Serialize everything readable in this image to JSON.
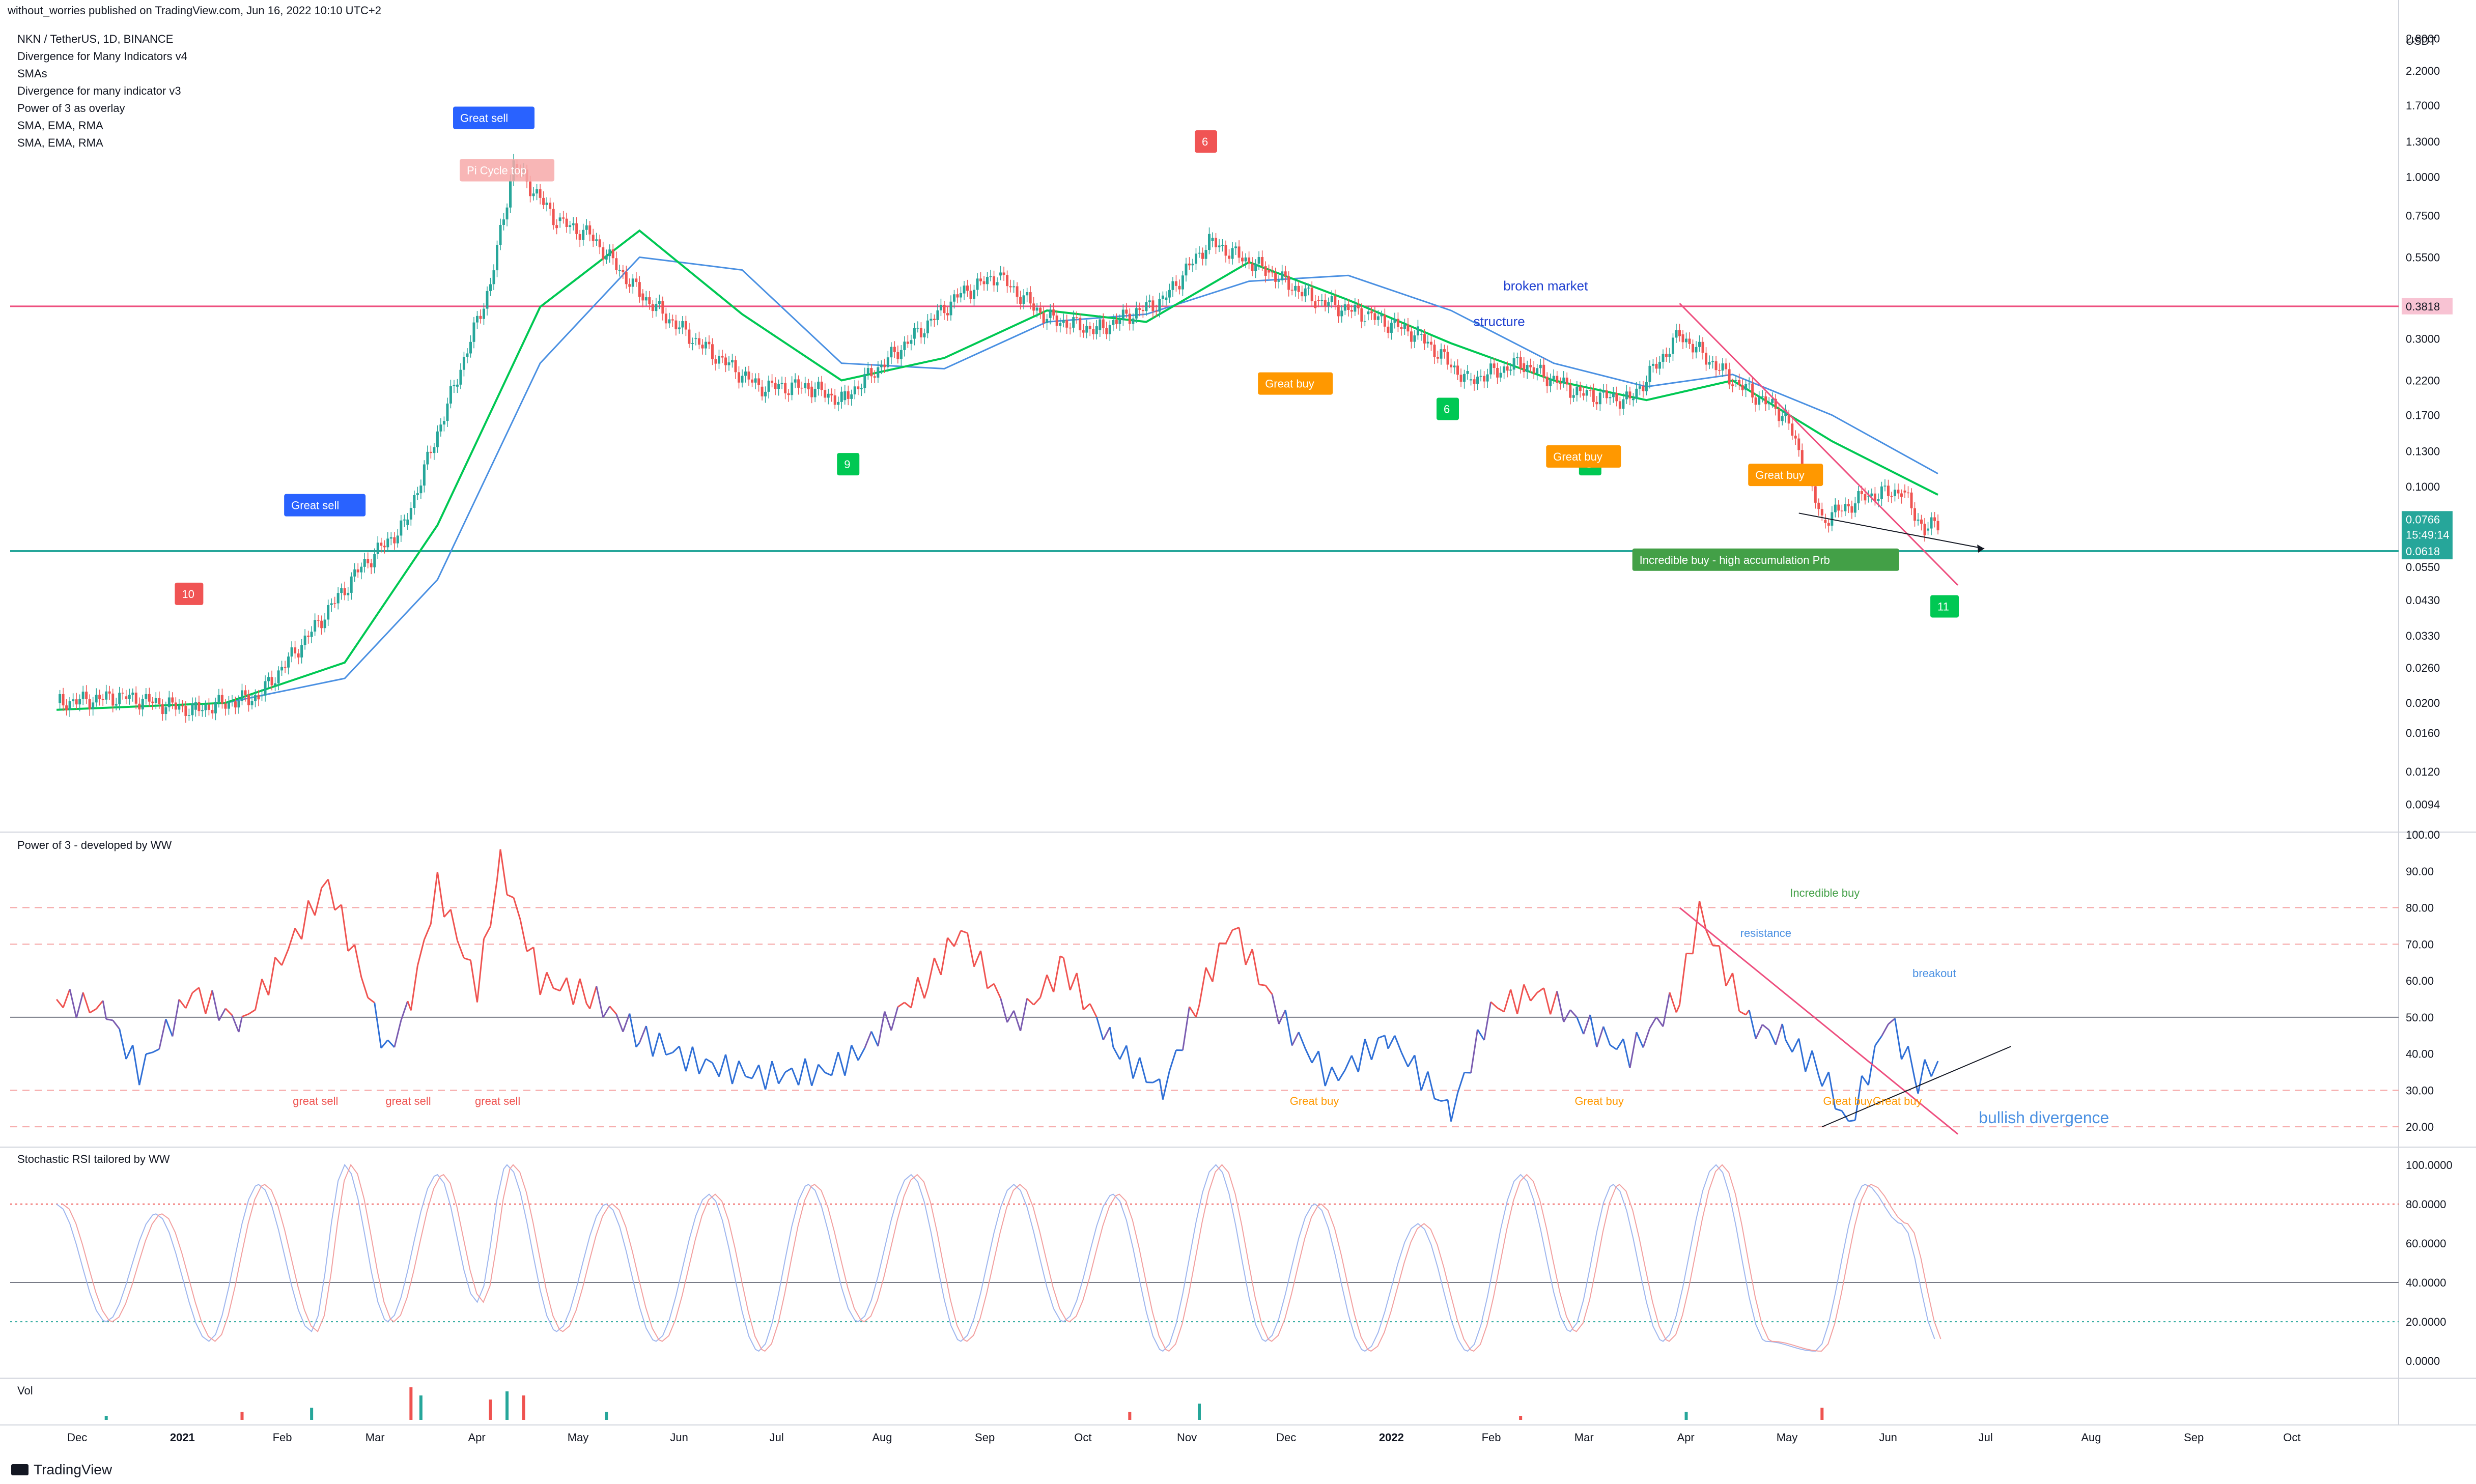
{
  "header": "without_worries published on TradingView.com, Jun 16, 2022 10:10 UTC+2",
  "legend": [
    "NKN / TetherUS, 1D, BINANCE",
    "Divergence for Many Indicators v4",
    "SMAs",
    "Divergence for many indicator v3",
    "Power of 3 as overlay",
    "SMA, EMA, RMA",
    "SMA, EMA, RMA"
  ],
  "footer": "TradingView",
  "colors": {
    "up": "#26a69a",
    "down": "#ef5350",
    "ma_green": "#00c853",
    "ma_blue": "#4a90e2",
    "pink": "#ee4f7f",
    "teal": "#26a69a",
    "orange": "#ff9800",
    "blue_label": "#2962ff"
  },
  "chart_data": [
    {
      "type": "line",
      "title": "NKN / TetherUS, 1D, BINANCE",
      "y_scale": "log",
      "ylabel": "USDT",
      "y_ticks": [
        "2.8000",
        "2.2000",
        "1.7000",
        "1.3000",
        "1.0000",
        "0.7500",
        "0.5500",
        "0.3818",
        "0.3000",
        "0.2200",
        "0.1700",
        "0.1300",
        "0.1000",
        "0.0766",
        "0.0550",
        "0.0430",
        "0.0330",
        "0.0260",
        "0.0200",
        "0.0160",
        "0.0120",
        "0.0094"
      ],
      "x_ticks": [
        "Dec",
        "2021",
        "Feb",
        "Mar",
        "Apr",
        "May",
        "Jun",
        "Jul",
        "Aug",
        "Sep",
        "Oct",
        "Nov",
        "Dec",
        "2022",
        "Feb",
        "Mar",
        "Apr",
        "May",
        "Jun",
        "Jul",
        "Aug",
        "Sep",
        "Oct"
      ],
      "series": [
        {
          "name": "price",
          "x": [
            "2020-11-25",
            "2020-12-15",
            "2021-01-05",
            "2021-01-25",
            "2021-02-10",
            "2021-02-25",
            "2021-03-10",
            "2021-03-25",
            "2021-04-05",
            "2021-04-12",
            "2021-04-25",
            "2021-05-05",
            "2021-05-20",
            "2021-06-05",
            "2021-06-25",
            "2021-07-10",
            "2021-07-20",
            "2021-08-10",
            "2021-08-25",
            "2021-09-05",
            "2021-09-20",
            "2021-10-05",
            "2021-10-25",
            "2021-11-08",
            "2021-11-25",
            "2021-12-10",
            "2021-12-25",
            "2022-01-10",
            "2022-01-25",
            "2022-02-10",
            "2022-02-28",
            "2022-03-15",
            "2022-03-30",
            "2022-04-15",
            "2022-05-01",
            "2022-05-12",
            "2022-05-25",
            "2022-06-05",
            "2022-06-12",
            "2022-06-16"
          ],
          "values": [
            0.02,
            0.021,
            0.019,
            0.021,
            0.034,
            0.055,
            0.075,
            0.21,
            0.45,
            1.1,
            0.72,
            0.65,
            0.42,
            0.3,
            0.21,
            0.21,
            0.19,
            0.3,
            0.42,
            0.48,
            0.35,
            0.32,
            0.4,
            0.62,
            0.5,
            0.4,
            0.36,
            0.31,
            0.22,
            0.25,
            0.2,
            0.19,
            0.31,
            0.22,
            0.17,
            0.078,
            0.093,
            0.097,
            0.072,
            0.0766
          ]
        },
        {
          "name": "SMA green",
          "x": [
            "2020-11-25",
            "2021-01-15",
            "2021-02-20",
            "2021-03-20",
            "2021-04-20",
            "2021-05-20",
            "2021-06-20",
            "2021-07-20",
            "2021-08-20",
            "2021-09-20",
            "2021-10-20",
            "2021-11-20",
            "2021-12-20",
            "2022-01-20",
            "2022-02-20",
            "2022-03-20",
            "2022-04-15",
            "2022-05-15",
            "2022-06-16"
          ],
          "values": [
            0.019,
            0.02,
            0.027,
            0.075,
            0.38,
            0.67,
            0.36,
            0.22,
            0.26,
            0.37,
            0.34,
            0.53,
            0.4,
            0.29,
            0.22,
            0.19,
            0.22,
            0.14,
            0.094
          ]
        },
        {
          "name": "SMA blue",
          "x": [
            "2020-11-25",
            "2021-01-15",
            "2021-02-20",
            "2021-03-20",
            "2021-04-20",
            "2021-05-20",
            "2021-06-20",
            "2021-07-20",
            "2021-08-20",
            "2021-09-20",
            "2021-10-20",
            "2021-11-20",
            "2021-12-20",
            "2022-01-20",
            "2022-02-20",
            "2022-03-20",
            "2022-04-15",
            "2022-05-15",
            "2022-06-16"
          ],
          "values": [
            0.019,
            0.02,
            0.024,
            0.05,
            0.25,
            0.55,
            0.5,
            0.25,
            0.24,
            0.34,
            0.36,
            0.46,
            0.48,
            0.37,
            0.25,
            0.21,
            0.23,
            0.17,
            0.11
          ]
        }
      ],
      "hlines": [
        {
          "value": 0.3818,
          "label": "0.3818"
        },
        {
          "value": 0.0618,
          "label": "0.0618"
        }
      ],
      "last_price": "0.0766",
      "countdown": "15:49:14",
      "annotations": [
        {
          "text": "Great sell",
          "x": "2021-04-06",
          "y": 1.55,
          "bg": "#2962ff"
        },
        {
          "text": "Great sell",
          "x": "2021-02-14",
          "y": 0.087,
          "bg": "#2962ff"
        },
        {
          "text": "Pi Cycle top",
          "x": "2021-04-10",
          "y": 1.05,
          "bg": "#f7a9a9"
        },
        {
          "text": "10",
          "x": "2021-01-04",
          "y": 0.045,
          "bg": "#f05454"
        },
        {
          "text": "6",
          "x": "2021-11-07",
          "y": 1.3,
          "bg": "#f05454"
        },
        {
          "text": "9",
          "x": "2021-07-22",
          "y": 0.118,
          "bg": "#00c853"
        },
        {
          "text": "6",
          "x": "2022-01-19",
          "y": 0.178,
          "bg": "#00c853"
        },
        {
          "text": "9",
          "x": "2022-03-03",
          "y": 0.118,
          "bg": "#00c853"
        },
        {
          "text": "11",
          "x": "2022-06-18",
          "y": 0.041,
          "bg": "#00c853"
        },
        {
          "text": "Great buy",
          "x": "2021-12-04",
          "y": 0.215,
          "bg": "#ff9800"
        },
        {
          "text": "Great buy",
          "x": "2022-03-01",
          "y": 0.125,
          "bg": "#ff9800"
        },
        {
          "text": "Great buy",
          "x": "2022-05-01",
          "y": 0.109,
          "bg": "#ff9800"
        },
        {
          "text": "Incredible buy - high accumulation Prb",
          "x": "2022-04-25",
          "y": 0.058,
          "bg": "#43a047"
        },
        {
          "text": "broken market",
          "x": "2022-02-14",
          "y": 0.43,
          "color": "#1e3fd0",
          "plain": true
        },
        {
          "text": "structure",
          "x": "2022-02-05",
          "y": 0.33,
          "color": "#1e3fd0",
          "plain": true
        }
      ]
    },
    {
      "type": "line",
      "title": "Power of 3 - developed by WW",
      "ylim": [
        15,
        100
      ],
      "y_ticks": [
        100,
        90,
        80,
        70,
        60,
        50,
        40,
        30,
        20
      ],
      "series": [
        {
          "name": "Power of 3",
          "x": [
            "2020-11-25",
            "2020-12-10",
            "2020-12-20",
            "2021-01-05",
            "2021-01-20",
            "2021-02-05",
            "2021-02-15",
            "2021-02-25",
            "2021-03-05",
            "2021-03-12",
            "2021-03-20",
            "2021-04-01",
            "2021-04-08",
            "2021-04-20",
            "2021-05-05",
            "2021-05-20",
            "2021-06-05",
            "2021-06-25",
            "2021-07-15",
            "2021-07-25",
            "2021-08-15",
            "2021-08-25",
            "2021-09-10",
            "2021-09-25",
            "2021-10-10",
            "2021-10-25",
            "2021-11-05",
            "2021-11-15",
            "2021-12-01",
            "2021-12-15",
            "2022-01-01",
            "2022-01-20",
            "2022-02-01",
            "2022-02-15",
            "2022-03-01",
            "2022-03-15",
            "2022-03-30",
            "2022-04-05",
            "2022-04-20",
            "2022-05-01",
            "2022-05-12",
            "2022-05-20",
            "2022-06-01",
            "2022-06-10",
            "2022-06-16"
          ],
          "values": [
            55,
            52,
            35,
            57,
            48,
            72,
            87,
            62,
            40,
            55,
            86,
            58,
            92,
            60,
            56,
            45,
            38,
            34,
            35,
            40,
            60,
            74,
            48,
            64,
            42,
            30,
            56,
            75,
            48,
            33,
            45,
            24,
            52,
            57,
            48,
            40,
            56,
            79,
            48,
            44,
            35,
            20,
            50,
            33,
            38
          ]
        }
      ],
      "hlines": [
        80,
        70,
        50,
        30,
        20
      ],
      "annotations": [
        {
          "text": "great sell",
          "x": "2021-02-12",
          "y": 26,
          "color": "#ef5350"
        },
        {
          "text": "great sell",
          "x": "2021-03-12",
          "y": 26,
          "color": "#ef5350"
        },
        {
          "text": "great sell",
          "x": "2021-04-08",
          "y": 26,
          "color": "#ef5350"
        },
        {
          "text": "Great buy",
          "x": "2021-12-10",
          "y": 26,
          "color": "#ff9800"
        },
        {
          "text": "Great buy",
          "x": "2022-03-06",
          "y": 26,
          "color": "#ff9800"
        },
        {
          "text": "Great buy",
          "x": "2022-05-20",
          "y": 26,
          "color": "#ff9800"
        },
        {
          "text": "Great buy",
          "x": "2022-06-04",
          "y": 26,
          "color": "#ff9800"
        },
        {
          "text": "Incredible buy",
          "x": "2022-05-10",
          "y": 83,
          "color": "#43a047"
        },
        {
          "text": "resistance",
          "x": "2022-04-25",
          "y": 72,
          "color": "#4a90e2"
        },
        {
          "text": "breakout",
          "x": "2022-06-16",
          "y": 61,
          "color": "#4a90e2"
        },
        {
          "text": "bullish divergence",
          "x": "2022-07-06",
          "y": 21,
          "color": "#4a90e2",
          "big": true
        }
      ]
    },
    {
      "type": "line",
      "title": "Stochastic RSI tailored by WW",
      "ylim": [
        -8,
        108
      ],
      "y_ticks": [
        "100.0000",
        "80.0000",
        "60.0000",
        "40.0000",
        "20.0000",
        "0.0000"
      ],
      "series": [
        {
          "name": "K",
          "x": [
            "2020-11-25",
            "2020-12-10",
            "2020-12-25",
            "2021-01-10",
            "2021-01-25",
            "2021-02-10",
            "2021-02-20",
            "2021-03-05",
            "2021-03-20",
            "2021-04-01",
            "2021-04-10",
            "2021-04-25",
            "2021-05-10",
            "2021-05-25",
            "2021-06-10",
            "2021-06-25",
            "2021-07-10",
            "2021-07-25",
            "2021-08-10",
            "2021-08-25",
            "2021-09-10",
            "2021-09-25",
            "2021-10-10",
            "2021-10-25",
            "2021-11-10",
            "2021-11-25",
            "2021-12-10",
            "2021-12-25",
            "2022-01-10",
            "2022-01-25",
            "2022-02-10",
            "2022-02-25",
            "2022-03-10",
            "2022-03-25",
            "2022-04-10",
            "2022-04-25",
            "2022-05-10",
            "2022-05-25",
            "2022-06-05",
            "2022-06-16"
          ],
          "values": [
            80,
            20,
            75,
            10,
            90,
            15,
            100,
            20,
            95,
            30,
            100,
            15,
            80,
            10,
            85,
            5,
            90,
            20,
            95,
            10,
            90,
            20,
            85,
            5,
            100,
            10,
            80,
            5,
            70,
            5,
            95,
            15,
            90,
            10,
            100,
            10,
            5,
            90,
            70,
            10
          ]
        }
      ],
      "hlines": [
        80,
        40,
        20
      ]
    },
    {
      "type": "bar",
      "title": "Vol",
      "x": [
        "2020-12-10",
        "2021-01-20",
        "2021-02-10",
        "2021-03-12",
        "2021-03-15",
        "2021-04-05",
        "2021-04-10",
        "2021-04-15",
        "2021-05-10",
        "2021-10-15",
        "2021-11-05",
        "2022-02-10",
        "2022-04-01",
        "2022-05-12"
      ],
      "values": [
        1,
        2,
        3,
        8,
        6,
        5,
        7,
        6,
        2,
        2,
        4,
        1,
        2,
        3
      ]
    }
  ]
}
